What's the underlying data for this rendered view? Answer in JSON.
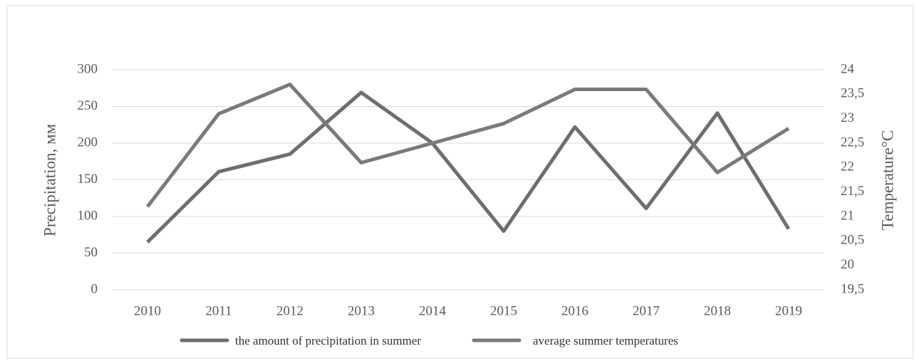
{
  "chart_data": {
    "type": "line",
    "categories": [
      "2010",
      "2011",
      "2012",
      "2013",
      "2014",
      "2015",
      "2016",
      "2017",
      "2018",
      "2019"
    ],
    "series": [
      {
        "name": "the amount of precipitation in summer",
        "color": "#6e6e6e",
        "values": [
          65,
          161,
          185,
          269,
          200,
          80,
          222,
          111,
          241,
          83
        ]
      },
      {
        "name": "average summer temperatures",
        "color": "#7a7a7a",
        "axis": "y2",
        "values": [
          21.2,
          23.1,
          23.7,
          22.1,
          22.5,
          22.9,
          23.6,
          23.6,
          21.9,
          22.8
        ]
      }
    ],
    "ylabel": "Precipitation, мм",
    "y2label": "Temperature°C",
    "ylim": [
      0,
      300
    ],
    "yticks": [
      0,
      50,
      100,
      150,
      200,
      250,
      300
    ],
    "y2lim": [
      19.5,
      24
    ],
    "y2ticks": [
      {
        "value": 19.5,
        "label": "19,5"
      },
      20,
      {
        "value": 20.5,
        "label": "20,5"
      },
      21,
      {
        "value": 21.5,
        "label": "21,5"
      },
      22,
      {
        "value": 22.5,
        "label": "22,5"
      },
      23,
      {
        "value": 23.5,
        "label": "23,5"
      },
      24
    ],
    "grid": true,
    "legend": "bottom"
  }
}
